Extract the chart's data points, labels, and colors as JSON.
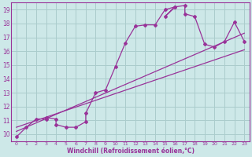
{
  "xlabel": "Windchill (Refroidissement éolien,°C)",
  "bg_color": "#cde8e8",
  "grid_color": "#aacccc",
  "line_color": "#993399",
  "xlim": [
    -0.5,
    23.5
  ],
  "ylim": [
    9.5,
    19.5
  ],
  "xticks": [
    0,
    1,
    2,
    3,
    4,
    5,
    6,
    7,
    8,
    9,
    10,
    11,
    12,
    13,
    14,
    15,
    16,
    17,
    18,
    19,
    20,
    21,
    22,
    23
  ],
  "yticks": [
    10,
    11,
    12,
    13,
    14,
    15,
    16,
    17,
    18,
    19
  ],
  "line_x": [
    0,
    1,
    2,
    3,
    3,
    4,
    4,
    5,
    6,
    7,
    7,
    8,
    9,
    10,
    11,
    12,
    13,
    14,
    15,
    16,
    15,
    16,
    17,
    17,
    18,
    19,
    20,
    21,
    22,
    23
  ],
  "line_y": [
    9.8,
    10.5,
    11.1,
    11.1,
    11.2,
    11.1,
    10.7,
    10.5,
    10.5,
    10.9,
    11.5,
    13.0,
    13.2,
    14.9,
    16.6,
    17.8,
    17.9,
    17.9,
    19.0,
    19.2,
    18.5,
    19.2,
    19.3,
    18.7,
    18.5,
    16.5,
    16.3,
    16.7,
    18.1,
    16.7
  ],
  "trend1_x": [
    0,
    23
  ],
  "trend1_y": [
    10.2,
    17.3
  ],
  "trend2_x": [
    0,
    23
  ],
  "trend2_y": [
    10.5,
    16.1
  ]
}
